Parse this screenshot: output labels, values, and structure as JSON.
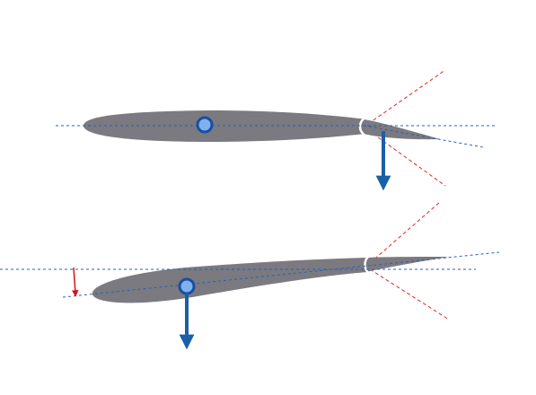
{
  "diagram": {
    "background": "#ffffff",
    "colors": {
      "airfoil_fill": "#7a7a80",
      "reference_line": "#2f5fb0",
      "deflection_limit": "#e0262a",
      "force_arrow": "#1a5fa8",
      "pivot_fill": "#7fb0f0",
      "pivot_ring": "#1a4fa0",
      "angle_arrow": "#d0141c",
      "hinge_gap": "#ffffff"
    },
    "panels": [
      {
        "name": "neutral",
        "elements": [
          "wing-body",
          "control-flap-deflected",
          "chord-reference-line",
          "flap-deflection-limit-lines",
          "pivot-point",
          "downward-force-arrow"
        ]
      },
      {
        "name": "pitched",
        "elements": [
          "wing-body",
          "control-flap",
          "horizontal-reference-line",
          "chord-reference-line",
          "flap-deflection-limit-lines",
          "pivot-point",
          "downward-force-arrow",
          "angle-of-attack-arrow"
        ]
      }
    ]
  }
}
